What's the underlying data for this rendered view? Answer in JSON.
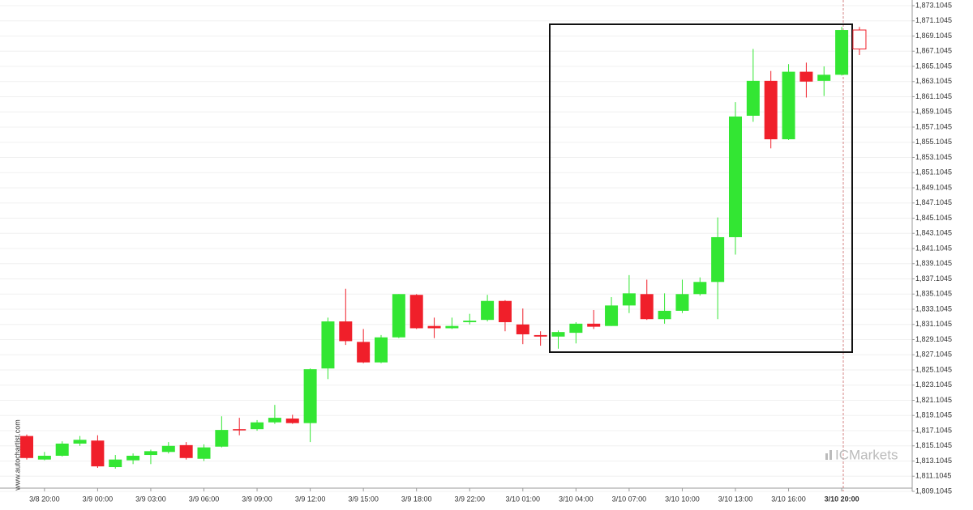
{
  "chart_data": {
    "type": "candlestick",
    "categories": [
      null,
      "3/8 20:00",
      null,
      null,
      "3/9 00:00",
      null,
      null,
      "3/9 03:00",
      null,
      null,
      "3/9 06:00",
      null,
      null,
      "3/9 09:00",
      null,
      null,
      "3/9 12:00",
      null,
      null,
      "3/9 15:00",
      null,
      null,
      "3/9 18:00",
      null,
      null,
      "3/9 22:00",
      null,
      null,
      "3/10 01:00",
      null,
      null,
      "3/10 04:00",
      null,
      null,
      "3/10 07:00",
      null,
      null,
      "3/10 10:00",
      null,
      null,
      "3/10 13:00",
      null,
      null,
      "3/10 16:00",
      null,
      null,
      "3/10 20:00",
      null
    ],
    "open": [
      1816.4,
      1813.3,
      1813.8,
      1815.4,
      1815.8,
      1812.3,
      1813.2,
      1813.9,
      1814.3,
      1815.2,
      1813.4,
      1815.0,
      1817.3,
      1817.3,
      1818.2,
      1818.7,
      1818.1,
      1825.3,
      1831.5,
      1828.8,
      1826.1,
      1829.4,
      1835.0,
      1830.9,
      1830.6,
      1831.4,
      1831.7,
      1834.2,
      1831.1,
      1829.7,
      1829.5,
      1830.0,
      1831.2,
      1830.9,
      1833.6,
      1835.1,
      1831.8,
      1832.9,
      1835.1,
      1836.7,
      1842.6,
      1858.6,
      1863.2,
      1855.5,
      1864.4,
      1863.2,
      1864.0,
      1869.9
    ],
    "high": [
      1816.6,
      1814.3,
      1815.7,
      1816.4,
      1816.5,
      1813.9,
      1814.1,
      1814.6,
      1815.6,
      1815.6,
      1815.3,
      1819.0,
      1818.8,
      1818.5,
      1820.5,
      1819.2,
      1825.3,
      1832.0,
      1835.8,
      1830.5,
      1829.7,
      1835.1,
      1835.1,
      1832.0,
      1832.0,
      1832.5,
      1835.0,
      1834.3,
      1833.2,
      1830.2,
      1830.3,
      1831.4,
      1833.0,
      1834.7,
      1837.6,
      1837.0,
      1835.2,
      1837.0,
      1837.3,
      1845.2,
      1860.4,
      1867.4,
      1864.5,
      1865.4,
      1865.6,
      1865.1,
      1870.3,
      1870.3
    ],
    "low": [
      1813.3,
      1813.2,
      1813.7,
      1815.1,
      1812.2,
      1812.1,
      1812.7,
      1812.7,
      1814.1,
      1813.3,
      1813.1,
      1814.9,
      1816.5,
      1817.1,
      1818.0,
      1818.0,
      1815.6,
      1823.9,
      1828.4,
      1826.0,
      1826.0,
      1829.3,
      1830.5,
      1829.3,
      1830.5,
      1831.1,
      1831.5,
      1830.2,
      1828.5,
      1828.3,
      1827.9,
      1828.6,
      1830.5,
      1830.9,
      1832.6,
      1831.7,
      1831.2,
      1832.6,
      1834.9,
      1831.8,
      1840.3,
      1857.8,
      1854.3,
      1855.4,
      1861.0,
      1861.2,
      1863.9,
      1866.6
    ],
    "close": [
      1813.5,
      1813.8,
      1815.4,
      1815.9,
      1812.4,
      1813.3,
      1813.8,
      1814.4,
      1815.1,
      1813.5,
      1814.9,
      1817.2,
      1817.2,
      1818.2,
      1818.8,
      1818.1,
      1825.2,
      1831.5,
      1828.9,
      1826.1,
      1829.4,
      1835.1,
      1830.6,
      1830.6,
      1830.9,
      1831.6,
      1834.2,
      1831.4,
      1829.8,
      1829.5,
      1830.1,
      1831.2,
      1830.8,
      1833.6,
      1835.2,
      1831.8,
      1832.9,
      1835.1,
      1836.7,
      1842.6,
      1858.5,
      1863.2,
      1855.5,
      1864.4,
      1863.1,
      1864.0,
      1869.9,
      1867.4
    ],
    "up_color": "#33e633",
    "down_color": "#f01f2a",
    "hollow_last": true,
    "ylim": [
      1809.1045,
      1873.1045
    ],
    "yticks": [
      {
        "value": 1809.1045,
        "label": "1,809.1045"
      },
      {
        "value": 1811.1045,
        "label": "1,811.1045"
      },
      {
        "value": 1813.1045,
        "label": "1,813.1045"
      },
      {
        "value": 1815.1045,
        "label": "1,815.1045"
      },
      {
        "value": 1817.1045,
        "label": "1,817.1045"
      },
      {
        "value": 1819.1045,
        "label": "1,819.1045"
      },
      {
        "value": 1821.1045,
        "label": "1,821.1045"
      },
      {
        "value": 1823.1045,
        "label": "1,823.1045"
      },
      {
        "value": 1825.1045,
        "label": "1,825.1045"
      },
      {
        "value": 1827.1045,
        "label": "1,827.1045"
      },
      {
        "value": 1829.1045,
        "label": "1,829.1045"
      },
      {
        "value": 1831.1045,
        "label": "1,831.1045"
      },
      {
        "value": 1833.1045,
        "label": "1,833.1045"
      },
      {
        "value": 1835.1045,
        "label": "1,835.1045"
      },
      {
        "value": 1837.1045,
        "label": "1,837.1045"
      },
      {
        "value": 1839.1045,
        "label": "1,839.1045"
      },
      {
        "value": 1841.1045,
        "label": "1,841.1045"
      },
      {
        "value": 1843.1045,
        "label": "1,843.1045"
      },
      {
        "value": 1845.1045,
        "label": "1,845.1045"
      },
      {
        "value": 1847.1045,
        "label": "1,847.1045"
      },
      {
        "value": 1849.1045,
        "label": "1,849.1045"
      },
      {
        "value": 1851.1045,
        "label": "1,851.1045"
      },
      {
        "value": 1853.1045,
        "label": "1,853.1045"
      },
      {
        "value": 1855.1045,
        "label": "1,855.1045"
      },
      {
        "value": 1857.1045,
        "label": "1,857.1045"
      },
      {
        "value": 1859.1045,
        "label": "1,859.1045"
      },
      {
        "value": 1861.1045,
        "label": "1,861.1045"
      },
      {
        "value": 1863.1045,
        "label": "1,863.1045"
      },
      {
        "value": 1865.1045,
        "label": "1,865.1045"
      },
      {
        "value": 1867.1045,
        "label": "1,867.1045"
      },
      {
        "value": 1869.1045,
        "label": "1,869.1045"
      },
      {
        "value": 1871.1045,
        "label": "1,871.1045"
      },
      {
        "value": 1873.1045,
        "label": "1,873.1045"
      }
    ],
    "grid": true,
    "watermark": "www.autochartist.com",
    "logo": "ICMarkets"
  }
}
